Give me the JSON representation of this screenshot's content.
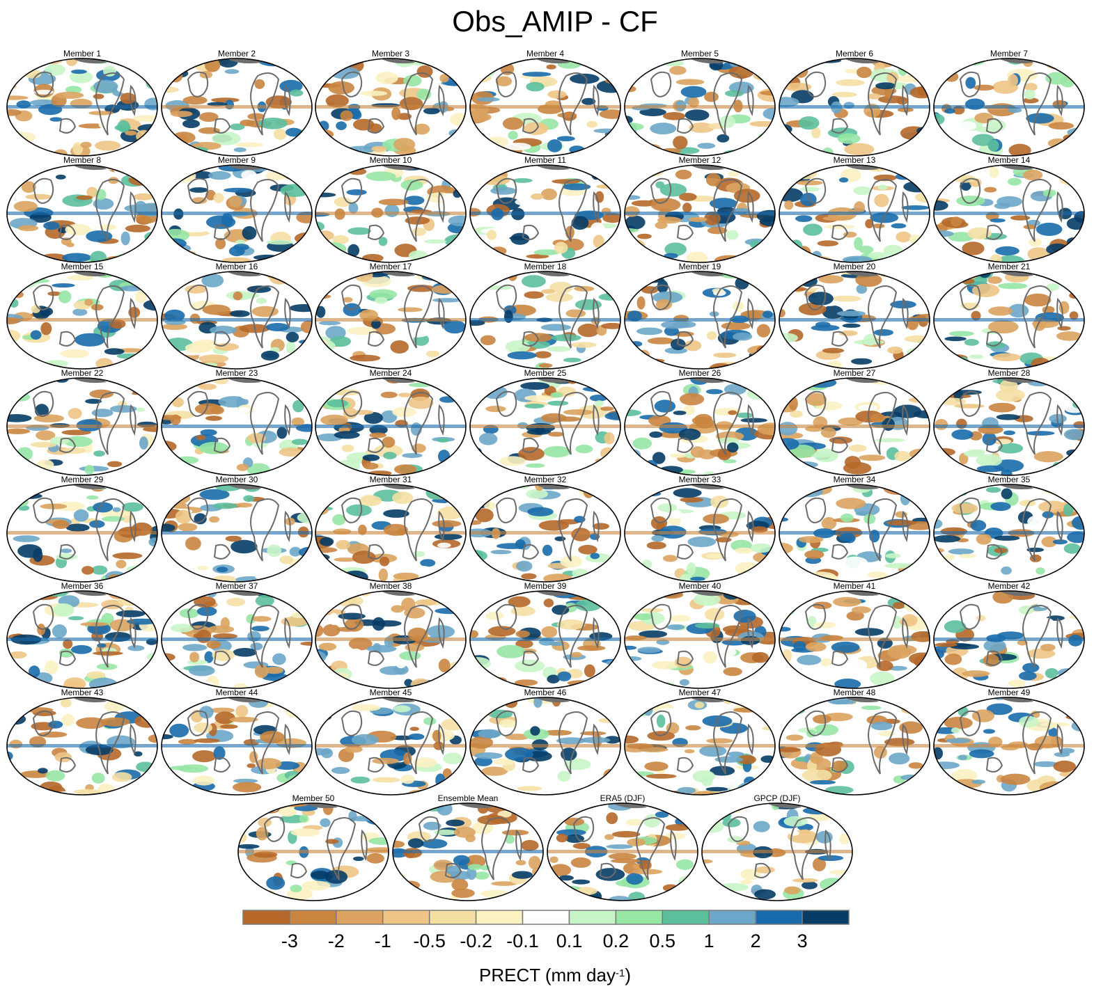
{
  "title": "Obs_AMIP - CF",
  "panels": [
    "Member 1",
    "Member 2",
    "Member 3",
    "Member 4",
    "Member 5",
    "Member 6",
    "Member 7",
    "Member 8",
    "Member 9",
    "Member 10",
    "Member 11",
    "Member 12",
    "Member 13",
    "Member 14",
    "Member 15",
    "Member 16",
    "Member 17",
    "Member 18",
    "Member 19",
    "Member 20",
    "Member 21",
    "Member 22",
    "Member 23",
    "Member 24",
    "Member 25",
    "Member 26",
    "Member 27",
    "Member 28",
    "Member 29",
    "Member 30",
    "Member 31",
    "Member 32",
    "Member 33",
    "Member 34",
    "Member 35",
    "Member 36",
    "Member 37",
    "Member 38",
    "Member 39",
    "Member 40",
    "Member 41",
    "Member 42",
    "Member 43",
    "Member 44",
    "Member 45",
    "Member 46",
    "Member 47",
    "Member 48",
    "Member 49",
    "Member 50",
    "Ensemble Mean",
    "ERA5 (DJF)",
    "GPCP (DJF)"
  ],
  "colorbar": {
    "colors": [
      "#b5682a",
      "#c98540",
      "#dba35f",
      "#eec585",
      "#f4dfa3",
      "#fbf1c1",
      "#ffffff",
      "#c8f5c8",
      "#96e6a4",
      "#5bbf9c",
      "#6ca6c8",
      "#1a6bab",
      "#063c66"
    ],
    "ticks": [
      "-3",
      "-2",
      "-1",
      "-0.5",
      "-0.2",
      "-0.1",
      "0.1",
      "0.2",
      "0.5",
      "1",
      "2",
      "3"
    ],
    "label_main": "PRECT (mm day",
    "label_sup": "-1",
    "label_end": ")"
  }
}
